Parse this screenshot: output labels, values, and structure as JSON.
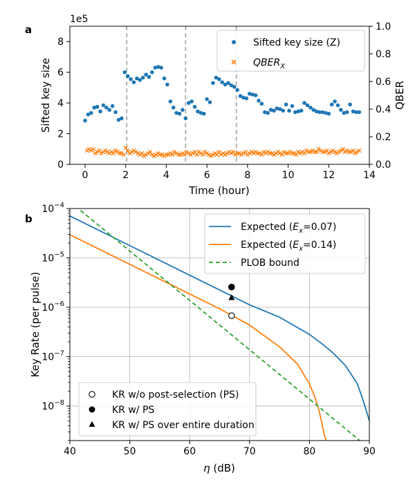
{
  "chart_data": [
    {
      "panel_label": "a",
      "type": "scatter",
      "xlabel": "Time (hour)",
      "ylabel": "Sifted key size",
      "y2label": "QBER",
      "y_offset_label": "1e5",
      "xlim": [
        -0.75,
        14.0
      ],
      "ylim": [
        0,
        9
      ],
      "y2lim": [
        0,
        1.0
      ],
      "x_ticks": [
        "0",
        "2",
        "4",
        "6",
        "8",
        "10",
        "12",
        "14"
      ],
      "y_ticks": [
        "0",
        "2",
        "4",
        "6",
        "8"
      ],
      "y2_ticks": [
        "0.0",
        "0.2",
        "0.4",
        "0.6",
        "0.8",
        "1.0"
      ],
      "grid": false,
      "legend_position": "top-right",
      "vlines_x": [
        2.05,
        4.95,
        7.45
      ],
      "series": [
        {
          "name": "Sifted key size (Z)",
          "color": "#1f77b4",
          "marker": "circle",
          "axis": "left",
          "x": [
            0.0,
            0.15,
            0.3,
            0.45,
            0.6,
            0.75,
            0.9,
            1.05,
            1.2,
            1.35,
            1.5,
            1.65,
            1.8,
            1.95,
            2.1,
            2.25,
            2.4,
            2.55,
            2.7,
            2.85,
            3.0,
            3.15,
            3.3,
            3.45,
            3.6,
            3.75,
            3.9,
            4.05,
            4.2,
            4.35,
            4.5,
            4.65,
            4.8,
            4.95,
            5.1,
            5.25,
            5.4,
            5.55,
            5.7,
            5.85,
            6.0,
            6.15,
            6.3,
            6.45,
            6.6,
            6.75,
            6.9,
            7.05,
            7.2,
            7.35,
            7.5,
            7.65,
            7.8,
            7.95,
            8.1,
            8.25,
            8.4,
            8.55,
            8.7,
            8.85,
            9.0,
            9.15,
            9.3,
            9.45,
            9.6,
            9.75,
            9.9,
            10.05,
            10.2,
            10.35,
            10.5,
            10.65,
            10.8,
            10.95,
            11.1,
            11.25,
            11.4,
            11.55,
            11.7,
            11.85,
            12.0,
            12.15,
            12.3,
            12.45,
            12.6,
            12.75,
            12.9,
            13.05,
            13.2,
            13.35,
            13.5
          ],
          "values": [
            2.85,
            3.25,
            3.35,
            3.7,
            3.75,
            3.45,
            3.85,
            3.7,
            3.55,
            3.8,
            3.4,
            2.9,
            3.0,
            6.0,
            5.75,
            5.55,
            5.35,
            5.6,
            5.5,
            5.65,
            5.85,
            5.7,
            6.0,
            6.3,
            6.35,
            6.3,
            5.6,
            5.2,
            4.1,
            3.7,
            3.35,
            3.3,
            3.55,
            3.0,
            4.0,
            4.1,
            3.75,
            3.45,
            3.35,
            3.3,
            4.25,
            4.05,
            5.3,
            5.65,
            5.55,
            5.35,
            5.2,
            5.3,
            5.15,
            5.05,
            4.85,
            4.45,
            4.35,
            4.3,
            4.6,
            4.55,
            4.5,
            4.15,
            3.95,
            3.4,
            3.35,
            3.55,
            3.5,
            3.65,
            3.6,
            3.5,
            3.9,
            3.5,
            3.8,
            3.4,
            3.45,
            3.5,
            4.0,
            3.85,
            3.7,
            3.55,
            3.45,
            3.4,
            3.4,
            3.35,
            3.3,
            3.9,
            4.1,
            3.85,
            3.55,
            3.35,
            3.4,
            3.9,
            3.45,
            3.4,
            3.4
          ]
        },
        {
          "name": "QBER_X",
          "color": "#ff7f0e",
          "marker": "x",
          "axis": "right",
          "x": [
            0.1,
            0.2,
            0.3,
            0.4,
            0.5,
            0.6,
            0.7,
            0.8,
            0.9,
            1.0,
            1.1,
            1.2,
            1.3,
            1.4,
            1.5,
            1.6,
            1.7,
            1.8,
            1.9,
            2.0,
            2.1,
            2.2,
            2.3,
            2.4,
            2.5,
            2.6,
            2.7,
            2.8,
            2.9,
            3.0,
            3.1,
            3.2,
            3.3,
            3.4,
            3.5,
            3.6,
            3.7,
            3.8,
            3.9,
            4.0,
            4.1,
            4.2,
            4.3,
            4.4,
            4.5,
            4.6,
            4.7,
            4.8,
            4.9,
            5.0,
            5.1,
            5.2,
            5.3,
            5.4,
            5.5,
            5.6,
            5.7,
            5.8,
            5.9,
            6.0,
            6.1,
            6.2,
            6.3,
            6.4,
            6.5,
            6.6,
            6.7,
            6.8,
            6.9,
            7.0,
            7.1,
            7.2,
            7.3,
            7.4,
            7.5,
            7.6,
            7.7,
            7.8,
            7.9,
            8.0,
            8.1,
            8.2,
            8.3,
            8.4,
            8.5,
            8.6,
            8.7,
            8.8,
            8.9,
            9.0,
            9.1,
            9.2,
            9.3,
            9.4,
            9.5,
            9.6,
            9.7,
            9.8,
            9.9,
            10.0,
            10.1,
            10.2,
            10.3,
            10.4,
            10.5,
            10.6,
            10.7,
            10.8,
            10.9,
            11.0,
            11.1,
            11.2,
            11.3,
            11.4,
            11.5,
            11.6,
            11.7,
            11.8,
            11.9,
            12.0,
            12.1,
            12.2,
            12.3,
            12.4,
            12.5,
            12.6,
            12.7,
            12.8,
            12.9,
            13.0,
            13.1,
            13.2,
            13.3,
            13.4,
            13.5
          ],
          "values": [
            0.1,
            0.11,
            0.1,
            0.11,
            0.08,
            0.09,
            0.1,
            0.08,
            0.09,
            0.1,
            0.09,
            0.08,
            0.09,
            0.08,
            0.1,
            0.09,
            0.08,
            0.08,
            0.07,
            0.12,
            0.1,
            0.08,
            0.09,
            0.1,
            0.09,
            0.08,
            0.07,
            0.08,
            0.06,
            0.07,
            0.08,
            0.09,
            0.07,
            0.06,
            0.07,
            0.08,
            0.07,
            0.07,
            0.06,
            0.07,
            0.07,
            0.08,
            0.07,
            0.09,
            0.08,
            0.07,
            0.07,
            0.08,
            0.07,
            0.09,
            0.08,
            0.07,
            0.08,
            0.09,
            0.07,
            0.09,
            0.08,
            0.07,
            0.09,
            0.08,
            0.07,
            0.06,
            0.07,
            0.08,
            0.07,
            0.09,
            0.07,
            0.08,
            0.07,
            0.08,
            0.09,
            0.08,
            0.09,
            0.07,
            0.08,
            0.08,
            0.07,
            0.08,
            0.09,
            0.07,
            0.08,
            0.09,
            0.08,
            0.09,
            0.08,
            0.08,
            0.07,
            0.09,
            0.08,
            0.09,
            0.08,
            0.08,
            0.07,
            0.08,
            0.09,
            0.08,
            0.07,
            0.09,
            0.08,
            0.08,
            0.09,
            0.08,
            0.08,
            0.07,
            0.09,
            0.08,
            0.09,
            0.08,
            0.1,
            0.09,
            0.09,
            0.1,
            0.09,
            0.09,
            0.11,
            0.1,
            0.09,
            0.09,
            0.1,
            0.08,
            0.09,
            0.1,
            0.09,
            0.08,
            0.09,
            0.1,
            0.11,
            0.09,
            0.1,
            0.09,
            0.09,
            0.1,
            0.08,
            0.09,
            0.1
          ]
        }
      ]
    },
    {
      "panel_label": "b",
      "type": "line",
      "xlabel": "η (dB)",
      "ylabel": "Key Rate (per pulse)",
      "xlim": [
        40,
        90
      ],
      "y_log_range": [
        -8.7,
        -4
      ],
      "y_scale": "log",
      "x_ticks": [
        "40",
        "50",
        "60",
        "70",
        "80",
        "90"
      ],
      "y_ticks": [
        {
          "base": "10",
          "exp": "−4",
          "value": -4
        },
        {
          "base": "10",
          "exp": "−5",
          "value": -5
        },
        {
          "base": "10",
          "exp": "−6",
          "value": -6
        },
        {
          "base": "10",
          "exp": "−7",
          "value": -7
        },
        {
          "base": "10",
          "exp": "−8",
          "value": -8
        }
      ],
      "grid": true,
      "legend_position": "top-right",
      "series": [
        {
          "name": "Expected (",
          "name_var": "E",
          "name_sub": "x",
          "name_val": "=0.07)",
          "color": "#1f77b4",
          "style": "solid",
          "x": [
            40,
            45,
            50,
            55,
            60,
            65,
            70,
            75,
            80,
            82,
            84,
            86,
            88,
            89,
            90
          ],
          "log10_values": [
            -4.15,
            -4.45,
            -4.75,
            -5.05,
            -5.35,
            -5.65,
            -5.95,
            -6.2,
            -6.55,
            -6.73,
            -6.93,
            -7.18,
            -7.55,
            -7.9,
            -8.3
          ]
        },
        {
          "name": "Expected (",
          "name_var": "E",
          "name_sub": "x",
          "name_val": "=0.14)",
          "color": "#ff7f0e",
          "style": "solid",
          "x": [
            40,
            45,
            50,
            55,
            60,
            65,
            70,
            75,
            78,
            80,
            81,
            81.5,
            82,
            82.5,
            82.8
          ],
          "log10_values": [
            -4.53,
            -4.83,
            -5.13,
            -5.43,
            -5.73,
            -6.03,
            -6.36,
            -6.8,
            -7.15,
            -7.55,
            -7.85,
            -8.05,
            -8.3,
            -8.6,
            -8.7
          ]
        },
        {
          "name": "PLOB bound",
          "color": "#2ca02c",
          "style": "dashed",
          "x": [
            40,
            90
          ],
          "log10_values": [
            -3.86,
            -8.86
          ]
        }
      ],
      "points": [
        {
          "name": "KR w/o post-selection (PS)",
          "marker": "open-circle",
          "x": 67,
          "log10_value": -6.17
        },
        {
          "name": "KR w/ PS",
          "marker": "filled-circle",
          "x": 67,
          "log10_value": -5.59
        },
        {
          "name": "KR w/ PS over entire duration",
          "marker": "triangle",
          "x": 67,
          "log10_value": -5.8
        }
      ]
    }
  ]
}
